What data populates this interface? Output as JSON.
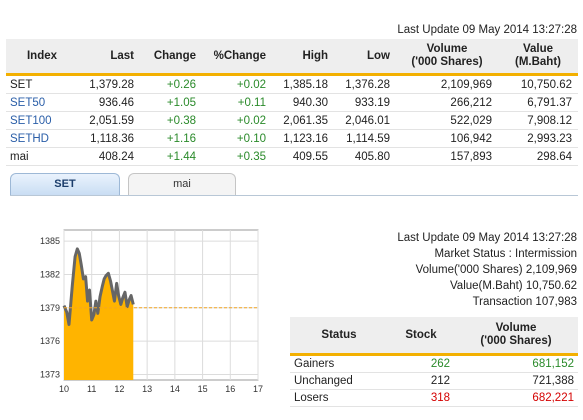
{
  "top_update": "Last Update 09 May 2014 13:27:28",
  "index_table": {
    "headers": [
      "Index",
      "Last",
      "Change",
      "%Change",
      "High",
      "Low",
      "Volume\n('000 Shares)",
      "Value\n(M.Baht)"
    ],
    "rows": [
      {
        "name": "SET",
        "last": "1,379.28",
        "change": "+0.26",
        "pct": "+0.02",
        "high": "1,385.18",
        "low": "1,376.28",
        "volume": "2,109,969",
        "value": "10,750.62"
      },
      {
        "name": "SET50",
        "last": "936.46",
        "change": "+1.05",
        "pct": "+0.11",
        "high": "940.30",
        "low": "933.19",
        "volume": "266,212",
        "value": "6,791.37"
      },
      {
        "name": "SET100",
        "last": "2,051.59",
        "change": "+0.38",
        "pct": "+0.02",
        "high": "2,061.35",
        "low": "2,046.01",
        "volume": "522,029",
        "value": "7,908.12"
      },
      {
        "name": "SETHD",
        "last": "1,118.36",
        "change": "+1.16",
        "pct": "+0.10",
        "high": "1,123.16",
        "low": "1,114.59",
        "volume": "106,942",
        "value": "2,993.23"
      },
      {
        "name": "mai",
        "last": "408.24",
        "change": "+1.44",
        "pct": "+0.35",
        "high": "409.55",
        "low": "405.80",
        "volume": "157,893",
        "value": "298.64"
      }
    ]
  },
  "tabs": [
    "SET",
    "mai"
  ],
  "active_tab": "SET",
  "chart_data": {
    "type": "area",
    "x_ticks": [
      "10",
      "11",
      "12",
      "13",
      "14",
      "15",
      "16",
      "17"
    ],
    "y_ticks": [
      "1373",
      "1376",
      "1379",
      "1382",
      "1385"
    ],
    "xlim": [
      10,
      17
    ],
    "ylim": [
      1372.5,
      1386
    ],
    "reference": 1379,
    "series": [
      {
        "x": [
          10,
          10.1,
          10.18,
          10.3,
          10.4,
          10.48,
          10.55,
          10.62,
          10.7,
          10.78,
          10.85,
          10.92,
          11,
          11.08,
          11.15,
          11.22,
          11.3,
          11.38,
          11.45,
          11.52,
          11.6,
          11.68,
          11.75,
          11.82,
          11.9,
          11.97,
          12.05,
          12.12,
          12.2,
          12.28,
          12.35,
          12.42,
          12.5
        ],
        "y": [
          1379.2,
          1378.6,
          1377.5,
          1381.0,
          1383.6,
          1384.3,
          1383.9,
          1382.9,
          1381.6,
          1381.8,
          1379.6,
          1380.6,
          1377.9,
          1378.4,
          1379.6,
          1378.5,
          1380.0,
          1380.9,
          1381.6,
          1381.9,
          1382.1,
          1381.4,
          1380.5,
          1379.6,
          1381.2,
          1380.1,
          1379.3,
          1379.9,
          1380.4,
          1379.1,
          1379.7,
          1380.1,
          1379.3
        ]
      }
    ],
    "fill_color": "#ffb400",
    "line_color": "#666666",
    "ref_color": "#f5a623"
  },
  "market_info": {
    "last_update": "Last Update 09 May 2014 13:27:28",
    "status": "Market Status : Intermission",
    "volume": "Volume('000 Shares) 2,109,969",
    "value": "Value(M.Baht) 10,750.62",
    "transaction": "Transaction 107,983"
  },
  "status_table": {
    "headers": [
      "Status",
      "Stock",
      "Volume\n('000 Shares)"
    ],
    "rows": [
      {
        "status": "Gainers",
        "stock": "262",
        "volume": "681,152"
      },
      {
        "status": "Unchanged",
        "stock": "212",
        "volume": "721,388"
      },
      {
        "status": "Losers",
        "stock": "318",
        "volume": "682,221"
      }
    ]
  }
}
